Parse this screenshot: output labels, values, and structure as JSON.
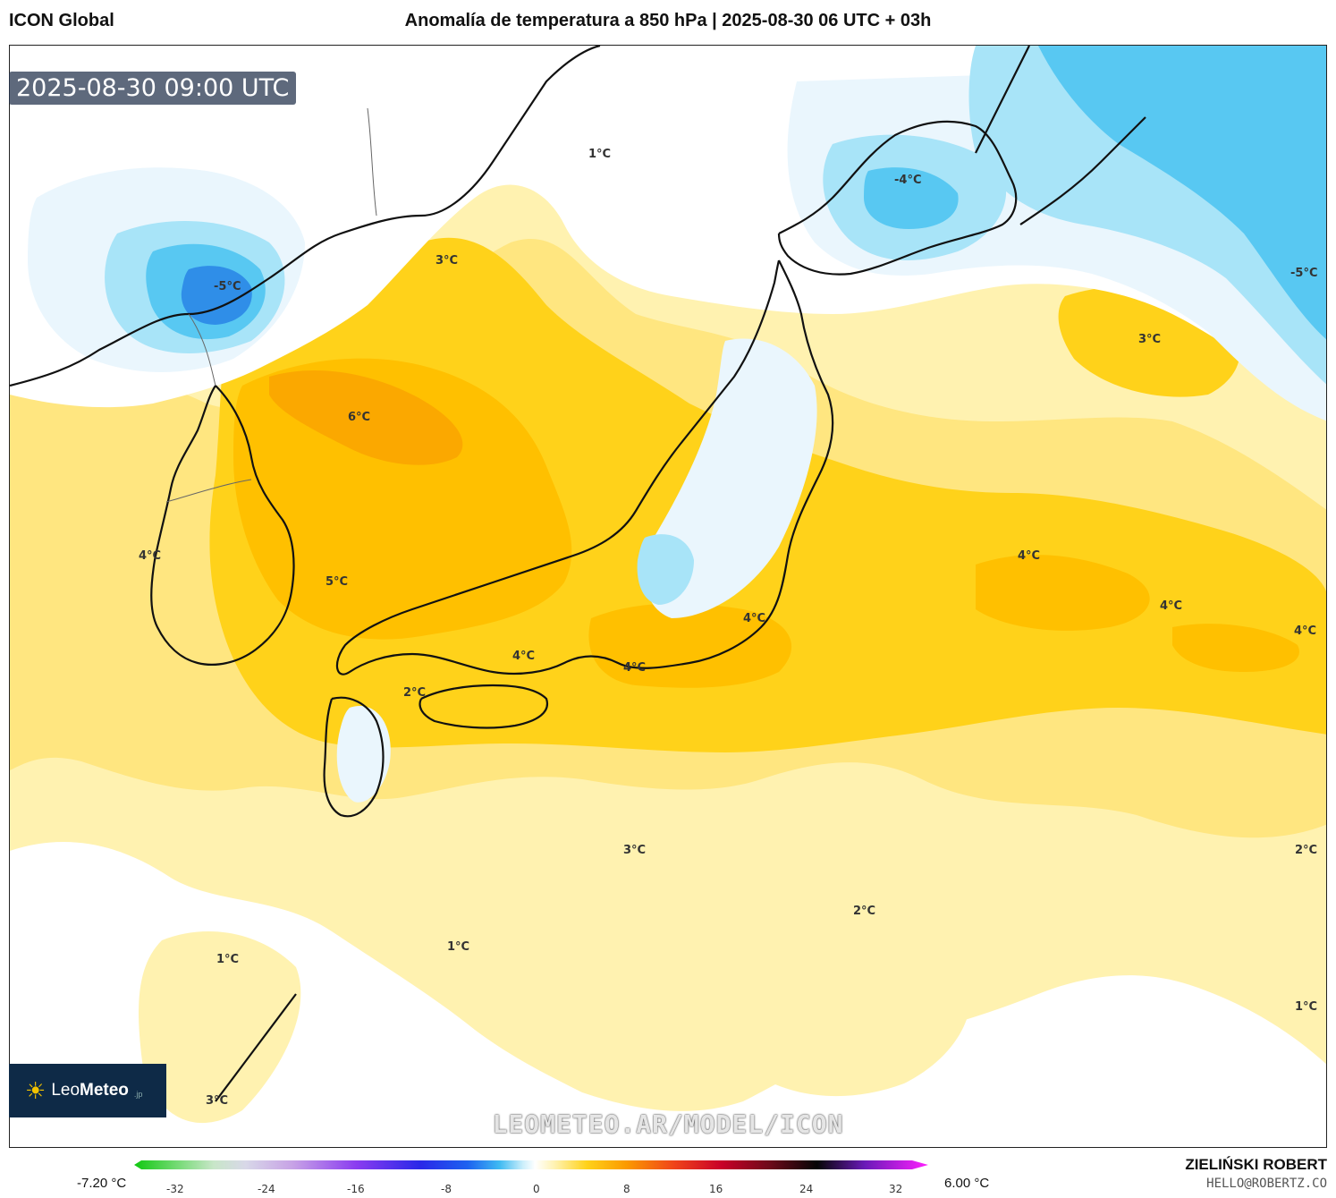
{
  "header": {
    "model": "ICON Global",
    "title": "Anomalía de temperatura a 850 hPa | 2025-08-30 06 UTC + 03h"
  },
  "timestamp": "2025-08-30 09:00 UTC",
  "watermark": "LEOMETEO.AR/MODEL/ICON",
  "logo": {
    "name_light": "Leo",
    "name_bold": "Meteo",
    "suffix": ".jp"
  },
  "labels": [
    "1°C",
    "3°C",
    "-5°C",
    "6°C",
    "4°C",
    "5°C",
    "-4°C",
    "-5°C",
    "3°C",
    "4°C",
    "4°C",
    "4°C",
    "4°C",
    "4°C",
    "4°C",
    "2°C",
    "3°C",
    "2°C",
    "2°C",
    "1°C",
    "1°C",
    "1°C"
  ],
  "colorbar": {
    "min_label": "-7.20 °C",
    "max_label": "6.00 °C",
    "ticks": [
      "-32",
      "-24",
      "-16",
      "-8",
      "0",
      "8",
      "16",
      "24",
      "32"
    ]
  },
  "author": "ZIELIŃSKI ROBERT",
  "email": "HELLO@ROBERTZ.CO",
  "colors": {
    "anom_0_1": "#ffffff",
    "anom_1_2": "#fff2b0",
    "anom_2_3": "#ffe680",
    "anom_3_4": "#ffd21a",
    "anom_4_5": "#ffc000",
    "anom_5_6": "#fba800",
    "anom_neg_light": "#eaf6fd",
    "anom_neg_mid": "#a8e4f8",
    "anom_neg_strong": "#58c8f2",
    "anom_neg_deep": "#2f8ee8"
  }
}
